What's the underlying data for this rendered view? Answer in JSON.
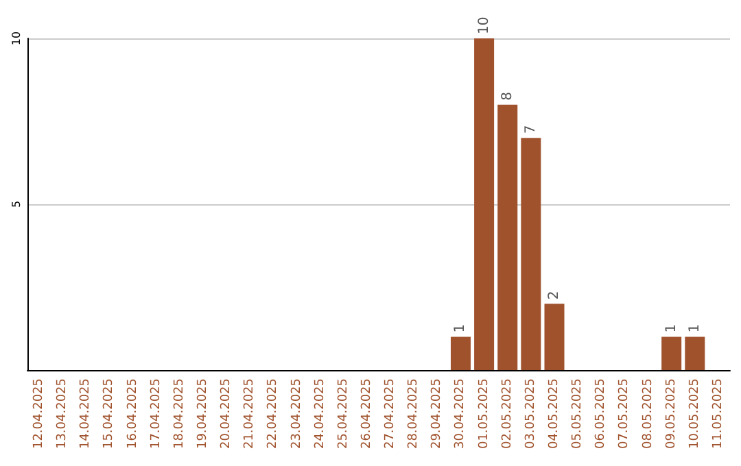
{
  "chart_data": {
    "type": "bar",
    "categories": [
      "12.04.2025",
      "13.04.2025",
      "14.04.2025",
      "15.04.2025",
      "16.04.2025",
      "17.04.2025",
      "18.04.2025",
      "19.04.2025",
      "20.04.2025",
      "21.04.2025",
      "22.04.2025",
      "23.04.2025",
      "24.04.2025",
      "25.04.2025",
      "26.04.2025",
      "27.04.2025",
      "28.04.2025",
      "29.04.2025",
      "30.04.2025",
      "01.05.2025",
      "02.05.2025",
      "03.05.2025",
      "04.05.2025",
      "05.05.2025",
      "06.05.2025",
      "07.05.2025",
      "08.05.2025",
      "09.05.2025",
      "10.05.2025",
      "11.05.2025"
    ],
    "values": [
      null,
      null,
      null,
      null,
      null,
      null,
      null,
      null,
      null,
      null,
      null,
      null,
      null,
      null,
      null,
      null,
      null,
      null,
      1,
      10,
      8,
      7,
      2,
      null,
      null,
      null,
      null,
      1,
      1,
      null
    ],
    "color": "#a0522d",
    "ylim": [
      0,
      10
    ],
    "yticks": [
      5,
      10
    ],
    "grid": "y",
    "data_labels": true
  }
}
